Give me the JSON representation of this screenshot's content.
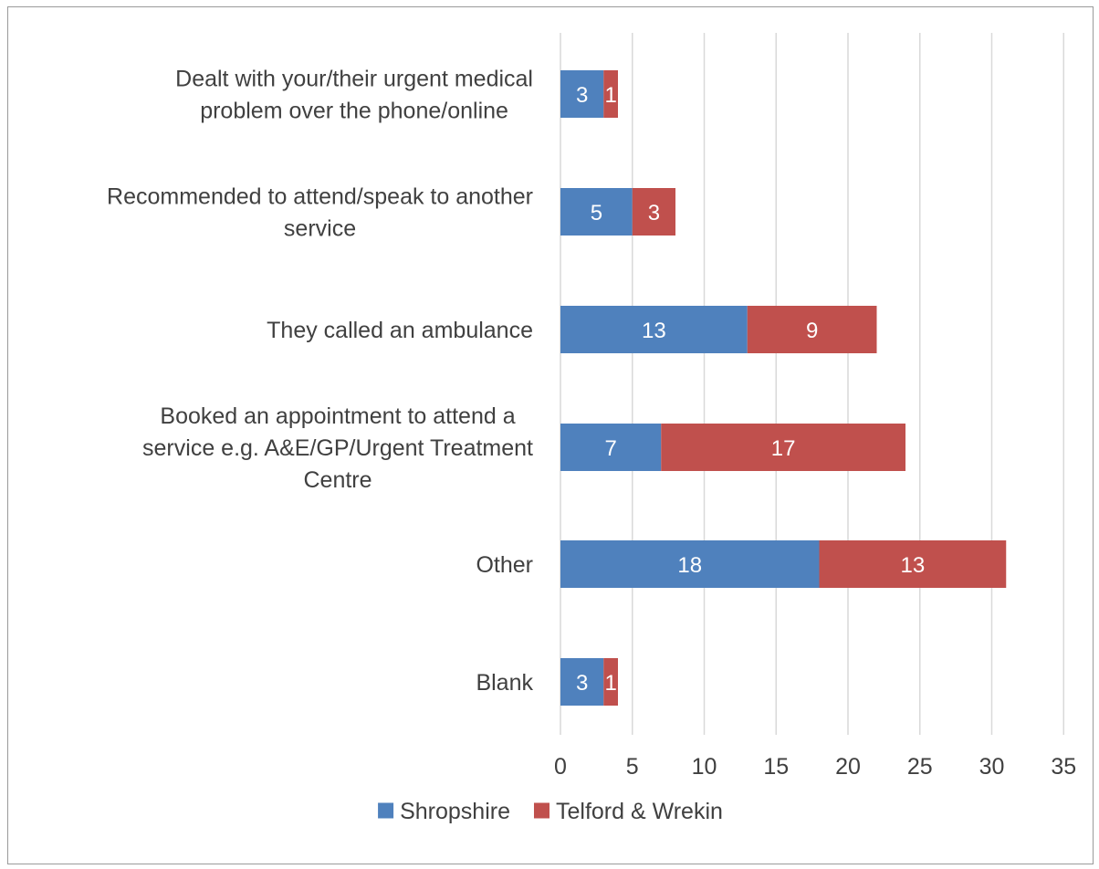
{
  "chart_data": {
    "type": "bar",
    "orientation": "horizontal",
    "stacked": true,
    "title": "",
    "xlabel": "",
    "ylabel": "",
    "xlim": [
      0,
      35
    ],
    "x_ticks": [
      0,
      5,
      10,
      15,
      20,
      25,
      30,
      35
    ],
    "grid": "vertical",
    "legend_position": "bottom",
    "categories": [
      [
        "Dealt with your/their urgent medical",
        "problem over the phone/online"
      ],
      [
        "Recommended to attend/speak to another",
        "service"
      ],
      [
        "They called an ambulance"
      ],
      [
        "Booked an appointment to attend a",
        "service e.g. A&E/GP/Urgent Treatment",
        "Centre"
      ],
      [
        "Other"
      ],
      [
        "Blank"
      ]
    ],
    "series": [
      {
        "name": "Shropshire",
        "color": "#4f81bd",
        "values": [
          3,
          5,
          13,
          7,
          18,
          3
        ]
      },
      {
        "name": "Telford & Wrekin",
        "color": "#c0504d",
        "values": [
          1,
          3,
          9,
          17,
          13,
          1
        ]
      }
    ]
  }
}
